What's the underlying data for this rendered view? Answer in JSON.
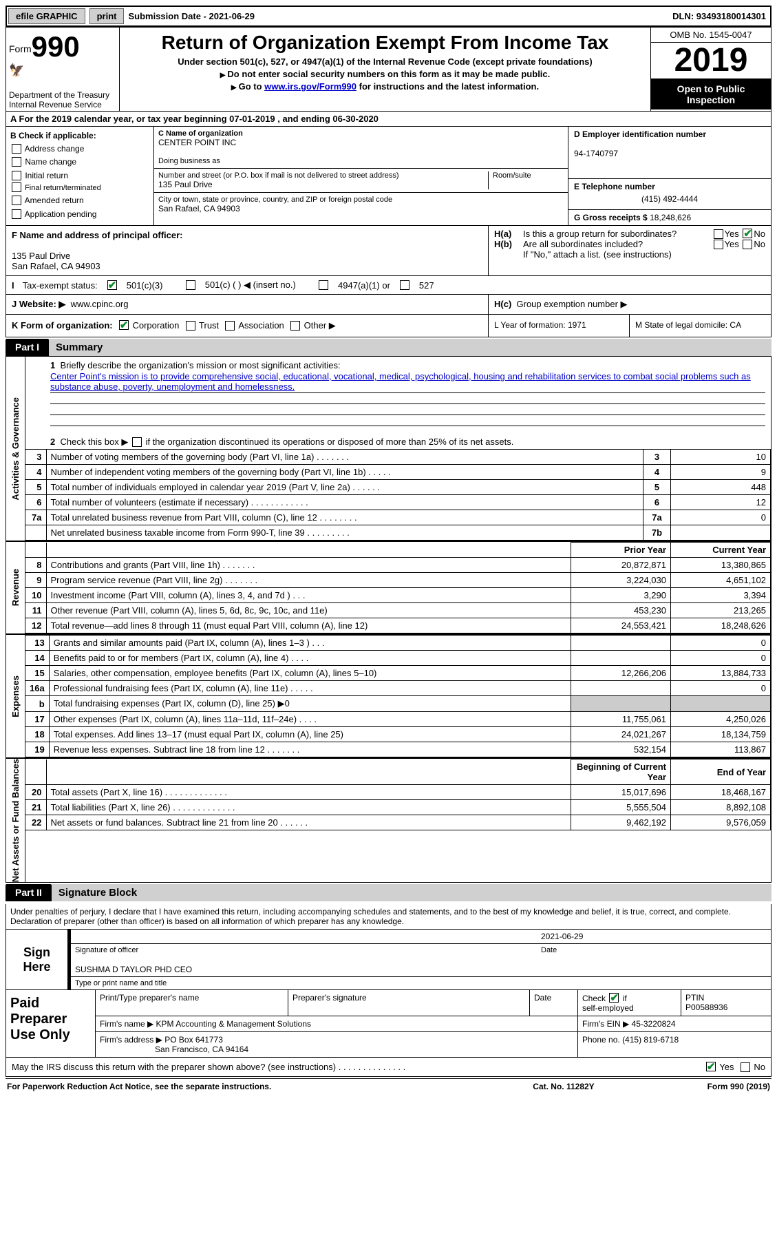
{
  "topbar": {
    "efile": "efile GRAPHIC",
    "print": "print",
    "submission_label": "Submission Date - 2021-06-29",
    "dln_label": "DLN: 93493180014301"
  },
  "header": {
    "form_label": "Form",
    "form_number": "990",
    "dept": "Department of the Treasury\nInternal Revenue Service",
    "title": "Return of Organization Exempt From Income Tax",
    "subtitle": "Under section 501(c), 527, or 4947(a)(1) of the Internal Revenue Code (except private foundations)",
    "line1": "Do not enter social security numbers on this form as it may be made public.",
    "line2_pre": "Go to ",
    "line2_link": "www.irs.gov/Form990",
    "line2_post": " for instructions and the latest information.",
    "omb": "OMB No. 1545-0047",
    "year": "2019",
    "open": "Open to Public Inspection"
  },
  "rowA": "A For the 2019 calendar year, or tax year beginning 07-01-2019    , and ending 06-30-2020",
  "boxB": {
    "hdr": "B Check if applicable:",
    "items": [
      "Address change",
      "Name change",
      "Initial return",
      "Final return/terminated",
      "Amended return",
      "Application pending"
    ]
  },
  "boxC": {
    "name_lbl": "C Name of organization",
    "name": "CENTER POINT INC",
    "dba_lbl": "Doing business as",
    "dba": "",
    "street_lbl": "Number and street (or P.O. box if mail is not delivered to street address)",
    "room_lbl": "Room/suite",
    "street": "135 Paul Drive",
    "city_lbl": "City or town, state or province, country, and ZIP or foreign postal code",
    "city": "San Rafael, CA  94903"
  },
  "boxD": {
    "ein_lbl": "D Employer identification number",
    "ein": "94-1740797",
    "phone_lbl": "E Telephone number",
    "phone": "(415) 492-4444",
    "gross_lbl": "G Gross receipts $",
    "gross": "18,248,626"
  },
  "boxF": {
    "lbl": "F Name and address of principal officer:",
    "line1": "135 Paul Drive",
    "line2": "San Rafael, CA  94903"
  },
  "boxH": {
    "a_lbl": "H(a)",
    "a_txt": "Is this a group return for subordinates?",
    "a_yes": "Yes",
    "a_no": "No",
    "b_lbl": "H(b)",
    "b_txt": "Are all subordinates included?",
    "b_note": "If \"No,\" attach a list. (see instructions)",
    "c_lbl": "H(c)",
    "c_txt": "Group exemption number ▶"
  },
  "rowI": {
    "lbl": "Tax-exempt status:",
    "opt1": "501(c)(3)",
    "opt2": "501(c) (   ) ◀ (insert no.)",
    "opt3": "4947(a)(1) or",
    "opt4": "527"
  },
  "rowJ": {
    "lbl": "J    Website: ▶",
    "val": "www.cpinc.org"
  },
  "rowK": {
    "lbl": "K Form of organization:",
    "opts": [
      "Corporation",
      "Trust",
      "Association",
      "Other ▶"
    ],
    "L": "L Year of formation: 1971",
    "M": "M State of legal domicile: CA"
  },
  "part1": {
    "hdr": "Part I",
    "title": "Summary",
    "q1_lbl": "1",
    "q1": "Briefly describe the organization's mission or most significant activities:",
    "mission": "Center Point's mission is to provide comprehensive social, educational, vocational, medical, psychological, housing and rehabilitation services to combat social problems such as substance abuse, poverty, unemployment and homelessness.",
    "q2": "Check this box ▶        if the organization discontinued its operations or disposed of more than 25% of its net assets.",
    "side_gov": "Activities & Governance",
    "side_rev": "Revenue",
    "side_exp": "Expenses",
    "side_net": "Net Assets or Fund Balances",
    "col_prior": "Prior Year",
    "col_curr": "Current Year",
    "col_beg": "Beginning of Current Year",
    "col_end": "End of Year",
    "rows_gov": [
      {
        "n": "3",
        "d": "Number of voting members of the governing body (Part VI, line 1a)   .    .    .    .    .    .    .",
        "code": "3",
        "val": "10"
      },
      {
        "n": "4",
        "d": "Number of independent voting members of the governing body (Part VI, line 1b)    .    .    .    .    .",
        "code": "4",
        "val": "9"
      },
      {
        "n": "5",
        "d": "Total number of individuals employed in calendar year 2019 (Part V, line 2a)   .    .    .    .    .    .",
        "code": "5",
        "val": "448"
      },
      {
        "n": "6",
        "d": "Total number of volunteers (estimate if necessary)    .    .    .    .    .    .    .    .    .    .    .    .",
        "code": "6",
        "val": "12"
      },
      {
        "n": "7a",
        "d": "Total unrelated business revenue from Part VIII, column (C), line 12    .    .    .    .    .    .    .    .",
        "code": "7a",
        "val": "0"
      },
      {
        "n": "",
        "d": "Net unrelated business taxable income from Form 990-T, line 39    .    .    .    .    .    .    .    .    .",
        "code": "7b",
        "val": ""
      }
    ],
    "rows_rev": [
      {
        "n": "8",
        "d": "Contributions and grants (Part VIII, line 1h)    .    .    .    .    .    .    .",
        "py": "20,872,871",
        "cy": "13,380,865"
      },
      {
        "n": "9",
        "d": "Program service revenue (Part VIII, line 2g)    .    .    .    .    .    .    .",
        "py": "3,224,030",
        "cy": "4,651,102"
      },
      {
        "n": "10",
        "d": "Investment income (Part VIII, column (A), lines 3, 4, and 7d )    .    .    .",
        "py": "3,290",
        "cy": "3,394"
      },
      {
        "n": "11",
        "d": "Other revenue (Part VIII, column (A), lines 5, 6d, 8c, 9c, 10c, and 11e)",
        "py": "453,230",
        "cy": "213,265"
      },
      {
        "n": "12",
        "d": "Total revenue—add lines 8 through 11 (must equal Part VIII, column (A), line 12)",
        "py": "24,553,421",
        "cy": "18,248,626"
      }
    ],
    "rows_exp": [
      {
        "n": "13",
        "d": "Grants and similar amounts paid (Part IX, column (A), lines 1–3 )    .    .    .",
        "py": "",
        "cy": "0"
      },
      {
        "n": "14",
        "d": "Benefits paid to or for members (Part IX, column (A), line 4)    .    .    .    .",
        "py": "",
        "cy": "0"
      },
      {
        "n": "15",
        "d": "Salaries, other compensation, employee benefits (Part IX, column (A), lines 5–10)",
        "py": "12,266,206",
        "cy": "13,884,733"
      },
      {
        "n": "16a",
        "d": "Professional fundraising fees (Part IX, column (A), line 11e)    .    .    .    .    .",
        "py": "",
        "cy": "0"
      },
      {
        "n": "b",
        "d": "Total fundraising expenses (Part IX, column (D), line 25) ▶0",
        "py": "GREY",
        "cy": "GREY"
      },
      {
        "n": "17",
        "d": "Other expenses (Part IX, column (A), lines 11a–11d, 11f–24e)    .    .    .    .",
        "py": "11,755,061",
        "cy": "4,250,026"
      },
      {
        "n": "18",
        "d": "Total expenses. Add lines 13–17 (must equal Part IX, column (A), line 25)",
        "py": "24,021,267",
        "cy": "18,134,759"
      },
      {
        "n": "19",
        "d": "Revenue less expenses. Subtract line 18 from line 12    .    .    .    .    .    .    .",
        "py": "532,154",
        "cy": "113,867"
      }
    ],
    "rows_net": [
      {
        "n": "20",
        "d": "Total assets (Part X, line 16)    .    .    .    .    .    .    .    .    .    .    .    .    .",
        "py": "15,017,696",
        "cy": "18,468,167"
      },
      {
        "n": "21",
        "d": "Total liabilities (Part X, line 26)    .    .    .    .    .    .    .    .    .    .    .    .    .",
        "py": "5,555,504",
        "cy": "8,892,108"
      },
      {
        "n": "22",
        "d": "Net assets or fund balances. Subtract line 21 from line 20    .    .    .    .    .    .",
        "py": "9,462,192",
        "cy": "9,576,059"
      }
    ]
  },
  "part2": {
    "hdr": "Part II",
    "title": "Signature Block",
    "decl": "Under penalties of perjury, I declare that I have examined this return, including accompanying schedules and statements, and to the best of my knowledge and belief, it is true, correct, and complete. Declaration of preparer (other than officer) is based on all information of which preparer has any knowledge.",
    "sign_here": "Sign Here",
    "sig_officer": "Signature of officer",
    "sig_date_lbl": "Date",
    "sig_date": "2021-06-29",
    "officer_name": "SUSHMA D TAYLOR PHD CEO",
    "officer_name_lbl": "Type or print name and title",
    "paid": "Paid Preparer Use Only",
    "p_name_lbl": "Print/Type preparer's name",
    "p_sig_lbl": "Preparer's signature",
    "p_date_lbl": "Date",
    "p_check_lbl": "Check         if self-employed",
    "ptin_lbl": "PTIN",
    "ptin": "P00588936",
    "firm_name_lbl": "Firm's name    ▶",
    "firm_name": "KPM Accounting & Management Solutions",
    "firm_ein_lbl": "Firm's EIN ▶",
    "firm_ein": "45-3220824",
    "firm_addr_lbl": "Firm's address ▶",
    "firm_addr1": "PO Box 641773",
    "firm_addr2": "San Francisco, CA  94164",
    "firm_phone_lbl": "Phone no.",
    "firm_phone": "(415) 819-6718"
  },
  "mayRow": {
    "txt": "May the IRS discuss this return with the preparer shown above? (see instructions)    .    .    .    .    .    .    .    .    .    .    .    .    .    .",
    "yes": "Yes",
    "no": "No"
  },
  "footer": {
    "left": "For Paperwork Reduction Act Notice, see the separate instructions.",
    "mid": "Cat. No. 11282Y",
    "right": "Form 990 (2019)"
  },
  "style": {
    "link_color": "#0000cc",
    "black": "#000000",
    "grey_btn": "#d0d0d0",
    "grey_cell": "#cccccc",
    "check_green": "#0a8a2a"
  }
}
